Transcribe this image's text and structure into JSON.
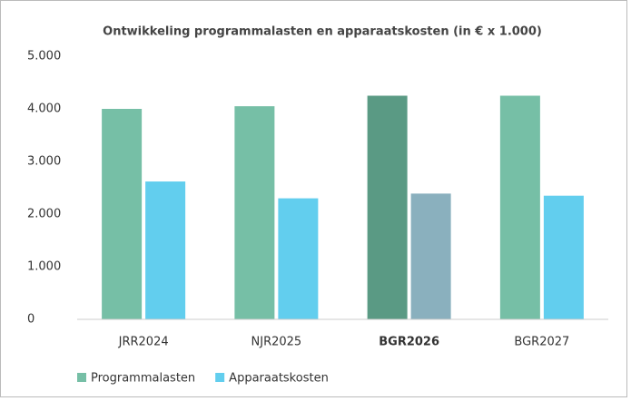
{
  "chart_data": {
    "type": "bar",
    "title": "Ontwikkeling programmalasten en apparaatskosten (in € x 1.000)",
    "categories": [
      "JRR2024",
      "NJR2025",
      "BGR2026",
      "BGR2027"
    ],
    "series": [
      {
        "name": "Programmalasten",
        "color": "#76bfa6",
        "values": [
          4000,
          4050,
          4250,
          4250
        ]
      },
      {
        "name": "Apparaatskosten",
        "color": "#62ceee",
        "values": [
          2620,
          2300,
          2390,
          2350
        ]
      }
    ],
    "highlight": {
      "category_index": 2,
      "colors": [
        "#5a9a84",
        "#8ab0be"
      ]
    },
    "ylim": [
      0,
      5000
    ],
    "yticks": [
      0,
      {
        "value": 1000,
        "label": "1.000"
      },
      {
        "value": 2000,
        "label": "2.000"
      },
      {
        "value": 3000,
        "label": "3.000"
      },
      {
        "value": 4000,
        "label": "4.000"
      },
      {
        "value": 5000,
        "label": "5.000"
      }
    ],
    "grid": false,
    "legend": "bottom-left"
  }
}
